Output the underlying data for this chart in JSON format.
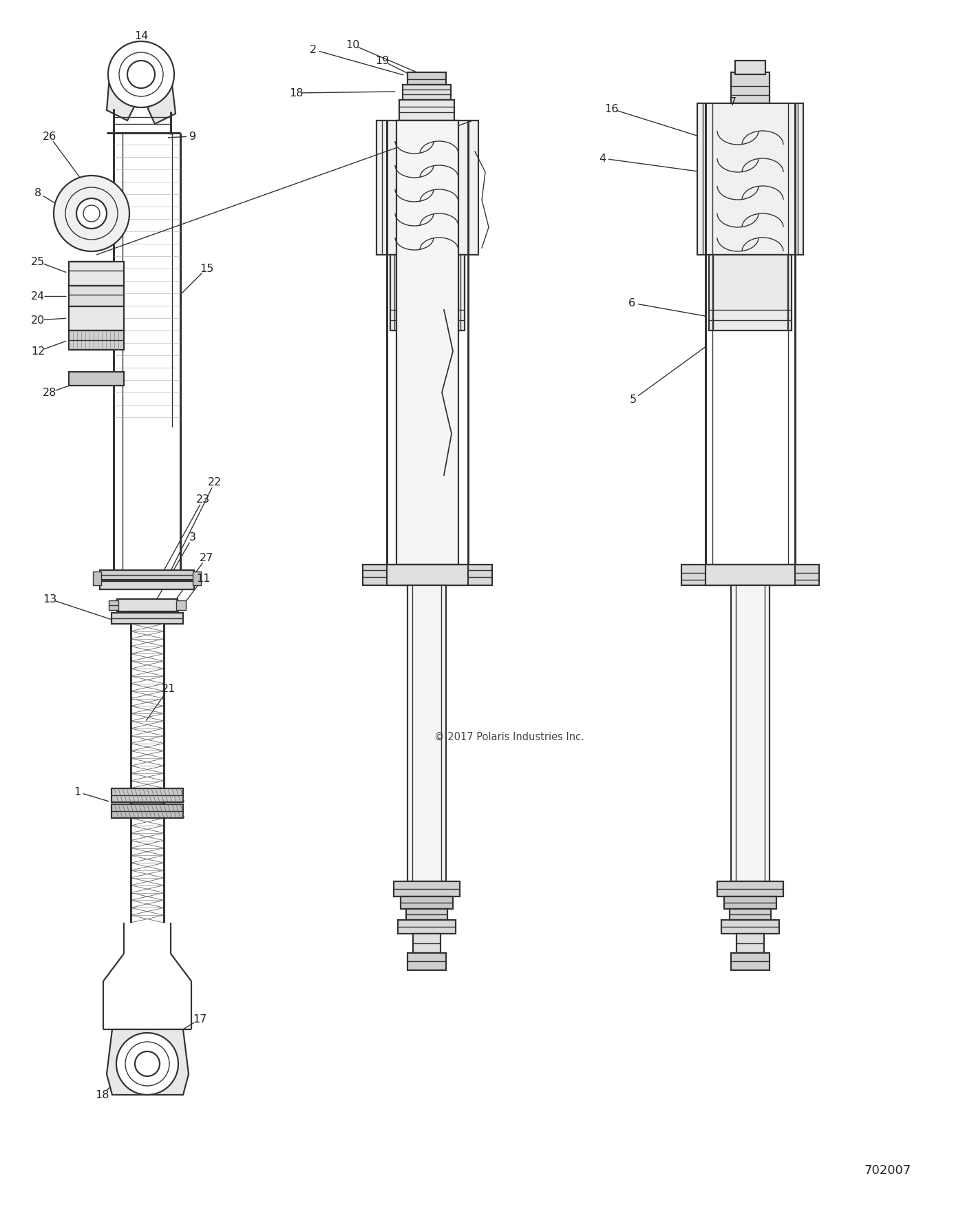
{
  "background_color": "#ffffff",
  "line_color": "#333333",
  "copyright_text": "© 2017 Polaris Industries Inc.",
  "diagram_id": "702007",
  "fig_width": 13.86,
  "fig_height": 17.82,
  "dpi": 100
}
